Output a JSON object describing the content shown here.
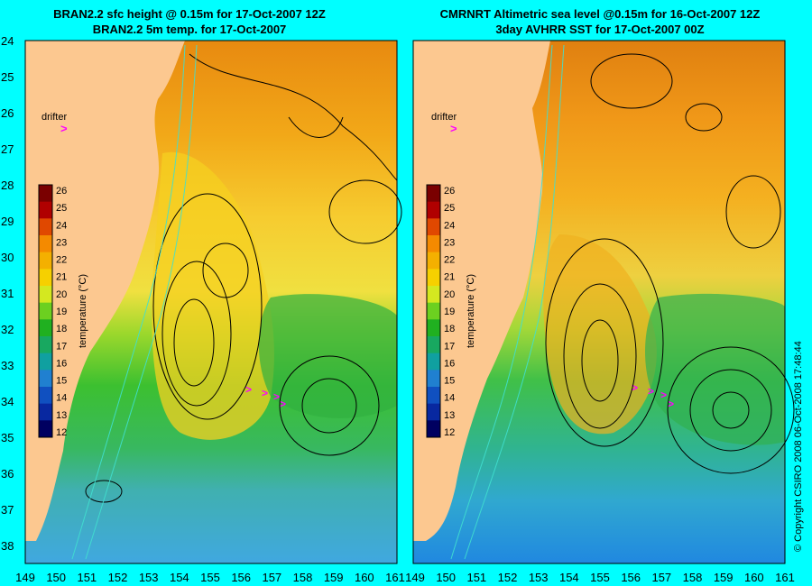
{
  "background_color": "#00ffff",
  "land_color": "#fcc890",
  "drifter_color": "#ff00ff",
  "contour_color": "#000000",
  "bathy_color": "#40e0d0",
  "panels": [
    {
      "id": "left",
      "title_line1": "BRAN2.2 sfc height @ 0.15m for 17-Oct-2007 12Z",
      "title_line2": "BRAN2.2 5m temp. for 17-Oct-2007",
      "drifter_label": "drifter",
      "drifter_marker": ">",
      "colorbar_label": "temperature (°C)",
      "y_ticks": [
        "24",
        "25",
        "26",
        "27",
        "28",
        "29",
        "30",
        "31",
        "32",
        "33",
        "34",
        "35",
        "36",
        "37",
        "38"
      ],
      "x_ticks": [
        "149",
        "150",
        "151",
        "152",
        "153",
        "154",
        "155",
        "156",
        "157",
        "158",
        "159",
        "160",
        "161"
      ]
    },
    {
      "id": "right",
      "title_line1": "CMRNRT Altimetric sea level  @0.15m  for 16-Oct-2007 12Z",
      "title_line2": "3day AVHRR SST for 17-Oct-2007 00Z",
      "drifter_label": "drifter",
      "drifter_marker": ">",
      "colorbar_label": "temperature (°C)",
      "y_ticks": [],
      "x_ticks": [
        "149",
        "150",
        "151",
        "152",
        "153",
        "154",
        "155",
        "156",
        "157",
        "158",
        "159",
        "160",
        "161"
      ]
    }
  ],
  "colorbar_ticks": [
    "26",
    "25",
    "24",
    "23",
    "22",
    "21",
    "20",
    "19",
    "18",
    "17",
    "16",
    "15",
    "14",
    "13",
    "12"
  ],
  "colorbar_colors": [
    "#7a0000",
    "#b00000",
    "#e04800",
    "#f48a00",
    "#f4b000",
    "#f6d000",
    "#d4e820",
    "#6cd020",
    "#20b020",
    "#18a860",
    "#10a0a0",
    "#2080d0",
    "#1050c0",
    "#0828a0",
    "#000060"
  ],
  "copyright": "© Copyright CSIRO 2008   06-Oct-2008 17:48:44"
}
